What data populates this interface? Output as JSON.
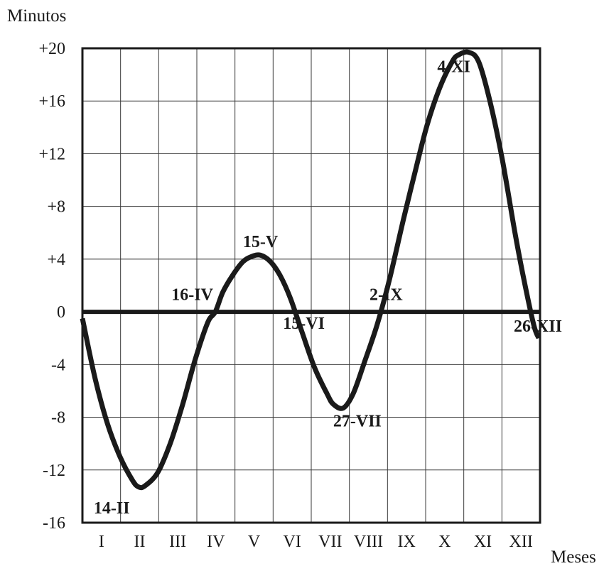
{
  "chart_data": {
    "type": "line",
    "title": "",
    "xlabel": "Meses",
    "ylabel": "Minutos",
    "ylim": [
      -16,
      20
    ],
    "y_ticks": [
      {
        "value": 20,
        "label": "+20"
      },
      {
        "value": 16,
        "label": "+16"
      },
      {
        "value": 12,
        "label": "+12"
      },
      {
        "value": 8,
        "label": "+8"
      },
      {
        "value": 4,
        "label": "+4"
      },
      {
        "value": 0,
        "label": "0"
      },
      {
        "value": -4,
        "label": "-4"
      },
      {
        "value": -8,
        "label": "-8"
      },
      {
        "value": -12,
        "label": "-12"
      },
      {
        "value": -16,
        "label": "-16"
      }
    ],
    "categories": [
      "I",
      "II",
      "III",
      "IV",
      "V",
      "VI",
      "VII",
      "VIII",
      "IX",
      "X",
      "XI",
      "XII"
    ],
    "grid": true,
    "x_unit": "day of year",
    "xlim": [
      0,
      365
    ],
    "series": [
      {
        "x": [
          0,
          10,
          20,
          30,
          40,
          45,
          50,
          60,
          70,
          80,
          90,
          100,
          106,
          112,
          120,
          128,
          135,
          142,
          150,
          158,
          166,
          175,
          185,
          195,
          200,
          208,
          216,
          225,
          235,
          245,
          256,
          265,
          275,
          285,
          295,
          300,
          308,
          316,
          325,
          335,
          345,
          352,
          360,
          364
        ],
        "y": [
          -0.5,
          -5.0,
          -8.5,
          -11.0,
          -12.8,
          -13.3,
          -13.2,
          -12.2,
          -10.0,
          -7.0,
          -3.6,
          -0.8,
          0.0,
          1.5,
          2.8,
          3.8,
          4.2,
          4.3,
          3.8,
          2.7,
          1.0,
          -1.5,
          -4.2,
          -6.2,
          -7.0,
          -7.3,
          -6.2,
          -3.8,
          -1.0,
          2.5,
          7.0,
          10.5,
          14.2,
          17.0,
          19.0,
          19.5,
          19.7,
          19.0,
          16.0,
          11.5,
          6.0,
          2.5,
          -1.0,
          -2.0
        ]
      }
    ],
    "annotations": [
      {
        "text": "14-II",
        "x": 9,
        "y": -15.3
      },
      {
        "text": "16-IV",
        "x": 71,
        "y": 0.9
      },
      {
        "text": "15-V",
        "x": 128,
        "y": 4.9
      },
      {
        "text": "15-VI",
        "x": 160,
        "y": -1.3
      },
      {
        "text": "27-VII",
        "x": 200,
        "y": -8.7
      },
      {
        "text": "2-IX",
        "x": 229,
        "y": 0.9
      },
      {
        "text": "4-XI",
        "x": 283,
        "y": 18.2
      },
      {
        "text": "26-XII",
        "x": 344,
        "y": -1.5
      }
    ]
  }
}
